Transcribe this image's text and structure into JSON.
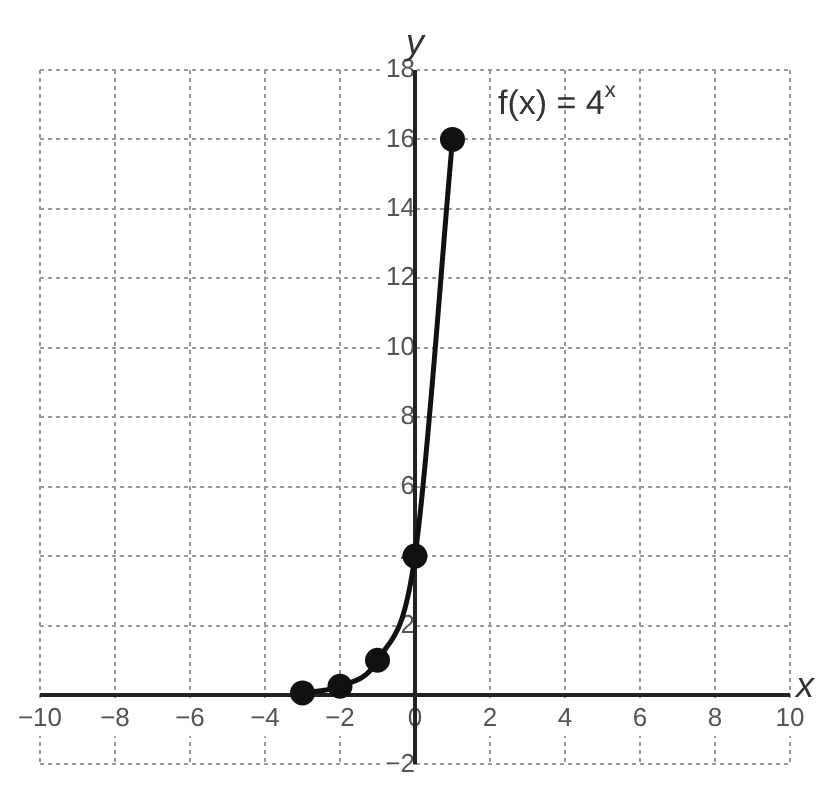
{
  "chart_data": {
    "type": "line",
    "xlabel": "x",
    "ylabel": "y",
    "annotations": [
      "f(x) = 4$^{x}$"
    ],
    "x": [
      -3,
      -2,
      -1,
      0,
      1
    ],
    "series": [
      {
        "color": "#111111",
        "values": [
          0.06,
          0.25,
          1,
          4,
          16
        ]
      }
    ],
    "xlim": [
      -10,
      10
    ],
    "ylim": [
      -2,
      18
    ],
    "xticks": [
      -10,
      -8,
      -6,
      -4,
      -2,
      0,
      2,
      4,
      6,
      8,
      10
    ],
    "yticks": [
      -2,
      {
        "value": 0,
        "label": null
      },
      2,
      4,
      6,
      8,
      10,
      12,
      14,
      16,
      18
    ],
    "grid": true,
    "marker": "circle",
    "line_style": "solid",
    "legend": false
  }
}
